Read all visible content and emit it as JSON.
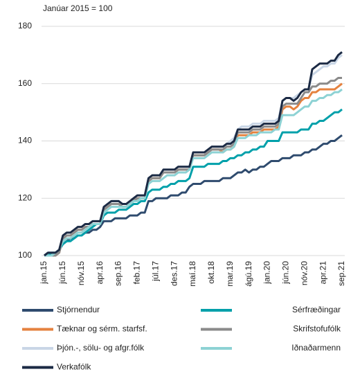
{
  "chart_data": {
    "type": "line",
    "subtitle": "Janúar 2015 = 100",
    "categories": [
      "jan.15",
      null,
      null,
      null,
      null,
      "jún.15",
      null,
      null,
      null,
      null,
      "nóv.15",
      null,
      null,
      null,
      null,
      "apr.16",
      null,
      null,
      null,
      null,
      "sep.16",
      null,
      null,
      null,
      null,
      "feb.17",
      null,
      null,
      null,
      null,
      "júl.17",
      null,
      null,
      null,
      null,
      "des.17",
      null,
      null,
      null,
      null,
      "maí.18",
      null,
      null,
      null,
      null,
      "okt.18",
      null,
      null,
      null,
      null,
      "mar.19",
      null,
      null,
      null,
      null,
      "ágú.19",
      null,
      null,
      null,
      null,
      "jan.20",
      null,
      null,
      null,
      null,
      "jún.20",
      null,
      null,
      null,
      null,
      "nóv.20",
      null,
      null,
      null,
      null,
      "apr.21",
      null,
      null,
      null,
      null,
      "sep.21"
    ],
    "ylim": [
      100,
      180
    ],
    "yticks": [
      100,
      120,
      140,
      160,
      180
    ],
    "grid": true,
    "series": [
      {
        "name": "Stjórnendur",
        "color": "#2f4b6e",
        "values": [
          100,
          101,
          101,
          101,
          102,
          104,
          105,
          106,
          106,
          107,
          107,
          108,
          108,
          109,
          109,
          110,
          112,
          112,
          112,
          113,
          113,
          113,
          113,
          114,
          114,
          114,
          115,
          115,
          119,
          119,
          120,
          120,
          120,
          120,
          121,
          121,
          121,
          122,
          122,
          124,
          125,
          125,
          125,
          126,
          126,
          126,
          126,
          126,
          127,
          127,
          127,
          128,
          129,
          129,
          130,
          129,
          130,
          130,
          131,
          131,
          132,
          133,
          133,
          133,
          134,
          134,
          134,
          135,
          135,
          135,
          136,
          136,
          137,
          137,
          138,
          139,
          139,
          140,
          140,
          141,
          142
        ]
      },
      {
        "name": "Sérfræðingar",
        "color": "#00a0aa",
        "values": [
          100,
          100,
          101,
          101,
          102,
          104,
          105,
          105,
          106,
          107,
          107,
          108,
          109,
          110,
          111,
          111,
          114,
          115,
          115,
          115,
          116,
          116,
          116,
          117,
          118,
          118,
          119,
          119,
          122,
          123,
          123,
          123,
          124,
          124,
          125,
          125,
          126,
          126,
          126,
          127,
          131,
          131,
          131,
          131,
          132,
          132,
          132,
          132,
          133,
          133,
          134,
          134,
          135,
          135,
          136,
          136,
          137,
          137,
          138,
          138,
          140,
          140,
          140,
          140,
          143,
          143,
          143,
          143,
          143,
          144,
          144,
          144,
          146,
          146,
          147,
          147,
          148,
          149,
          150,
          150,
          151
        ]
      },
      {
        "name": "Tæknar og sérm. starfsf.",
        "color": "#e5823f",
        "values": [
          100,
          100,
          100,
          100,
          101,
          106,
          107,
          107,
          108,
          109,
          109,
          110,
          110,
          111,
          111,
          111,
          116,
          117,
          118,
          118,
          118,
          117,
          117,
          118,
          119,
          120,
          120,
          120,
          126,
          127,
          127,
          127,
          129,
          129,
          129,
          129,
          130,
          130,
          130,
          130,
          135,
          135,
          135,
          135,
          136,
          137,
          137,
          137,
          136,
          137,
          137,
          138,
          142,
          142,
          142,
          142,
          143,
          143,
          143,
          144,
          144,
          144,
          144,
          145,
          151,
          152,
          152,
          151,
          152,
          154,
          155,
          155,
          157,
          157,
          158,
          158,
          158,
          158,
          158,
          159,
          160
        ]
      },
      {
        "name": "Skrifstofufólk",
        "color": "#8a8a8a",
        "values": [
          100,
          100,
          100,
          100,
          101,
          106,
          107,
          107,
          108,
          109,
          109,
          110,
          110,
          111,
          111,
          111,
          116,
          117,
          118,
          118,
          118,
          117,
          117,
          118,
          119,
          120,
          120,
          120,
          126,
          127,
          127,
          127,
          129,
          129,
          129,
          129,
          130,
          130,
          130,
          130,
          135,
          135,
          135,
          135,
          136,
          137,
          137,
          137,
          137,
          138,
          138,
          139,
          143,
          143,
          143,
          143,
          144,
          144,
          144,
          145,
          145,
          145,
          145,
          146,
          152,
          153,
          153,
          153,
          153,
          155,
          157,
          157,
          159,
          159,
          160,
          160,
          160,
          161,
          161,
          162,
          162
        ]
      },
      {
        "name": "Þjón.-, sölu- og afgr.fólk",
        "color": "#c9d6e6",
        "values": [
          100,
          101,
          101,
          101,
          102,
          107,
          108,
          108,
          109,
          110,
          110,
          111,
          111,
          112,
          112,
          112,
          117,
          118,
          119,
          119,
          119,
          118,
          118,
          119,
          120,
          121,
          121,
          121,
          127,
          128,
          128,
          128,
          130,
          130,
          130,
          130,
          131,
          131,
          131,
          131,
          136,
          136,
          136,
          136,
          137,
          138,
          138,
          138,
          138,
          139,
          140,
          141,
          144,
          145,
          145,
          145,
          146,
          146,
          146,
          147,
          147,
          147,
          147,
          148,
          154,
          155,
          155,
          155,
          156,
          157,
          158,
          158,
          163,
          164,
          165,
          166,
          166,
          167,
          167,
          169,
          170
        ]
      },
      {
        "name": "Iðnaðarmenn",
        "color": "#8dd2d4",
        "values": [
          100,
          100,
          100,
          101,
          102,
          105,
          106,
          106,
          107,
          108,
          108,
          109,
          110,
          111,
          111,
          111,
          115,
          116,
          117,
          117,
          117,
          117,
          117,
          118,
          119,
          119,
          120,
          120,
          125,
          126,
          126,
          126,
          127,
          128,
          128,
          128,
          129,
          129,
          129,
          130,
          134,
          134,
          134,
          134,
          135,
          136,
          136,
          136,
          136,
          137,
          137,
          138,
          141,
          141,
          141,
          142,
          142,
          142,
          143,
          143,
          143,
          143,
          144,
          144,
          149,
          149,
          149,
          149,
          150,
          151,
          152,
          152,
          154,
          154,
          155,
          155,
          156,
          156,
          157,
          157,
          158
        ]
      },
      {
        "name": "Verkafólk",
        "color": "#1b2a44",
        "values": [
          100,
          101,
          101,
          101,
          102,
          107,
          108,
          108,
          109,
          110,
          110,
          111,
          111,
          112,
          112,
          112,
          117,
          118,
          119,
          119,
          119,
          118,
          118,
          119,
          120,
          121,
          121,
          121,
          127,
          128,
          128,
          128,
          130,
          130,
          130,
          130,
          131,
          131,
          131,
          131,
          136,
          136,
          136,
          136,
          137,
          138,
          138,
          138,
          138,
          139,
          139,
          140,
          144,
          144,
          144,
          144,
          145,
          145,
          145,
          146,
          146,
          146,
          146,
          147,
          154,
          155,
          155,
          154,
          155,
          157,
          158,
          158,
          165,
          166,
          167,
          167,
          167,
          168,
          168,
          170,
          171
        ]
      }
    ]
  }
}
